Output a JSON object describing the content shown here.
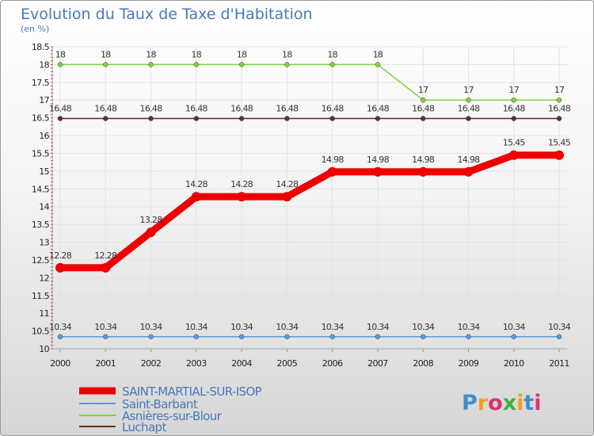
{
  "chart_data": {
    "type": "line",
    "title": "Evolution du Taux de Taxe d'Habitation",
    "unit_label": "(en %)",
    "categories": [
      "2000",
      "2001",
      "2002",
      "2003",
      "2004",
      "2005",
      "2006",
      "2007",
      "2008",
      "2009",
      "2010",
      "2011"
    ],
    "ylim": [
      10,
      18.5
    ],
    "y_ticks": [
      "10",
      "10.5",
      "11",
      "11.5",
      "12",
      "12.5",
      "13",
      "13.5",
      "14",
      "14.5",
      "15",
      "15.5",
      "16",
      "16.5",
      "17",
      "17.5",
      "18",
      "18.5"
    ],
    "grid": true,
    "legend_position": "bottom-left",
    "series": [
      {
        "name": "SAINT-MARTIAL-SUR-ISOP",
        "color": "#ee0000",
        "values": [
          12.28,
          12.28,
          13.28,
          14.28,
          14.28,
          14.28,
          14.98,
          14.98,
          14.98,
          14.98,
          15.45,
          15.45
        ]
      },
      {
        "name": "Saint-Barbant",
        "color": "#5b9bd5",
        "values": [
          10.34,
          10.34,
          10.34,
          10.34,
          10.34,
          10.34,
          10.34,
          10.34,
          10.34,
          10.34,
          10.34,
          10.34
        ]
      },
      {
        "name": "Asnières-sur-Blour",
        "color": "#7dd33b",
        "values": [
          18,
          18,
          18,
          18,
          18,
          18,
          18,
          18,
          17,
          17,
          17,
          17
        ]
      },
      {
        "name": "Luchapt",
        "color": "#6b2a2a",
        "values": [
          16.48,
          16.48,
          16.48,
          16.48,
          16.48,
          16.48,
          16.48,
          16.48,
          16.48,
          16.48,
          16.48,
          16.48
        ]
      }
    ]
  },
  "logo": {
    "letters": [
      "P",
      "r",
      "o",
      "x",
      "i",
      "t",
      "i"
    ],
    "colors": [
      "#3e8fd0",
      "#f0a020",
      "#e03070",
      "#40b040",
      "#f0a020",
      "#3e8fd0",
      "#e03070"
    ]
  }
}
